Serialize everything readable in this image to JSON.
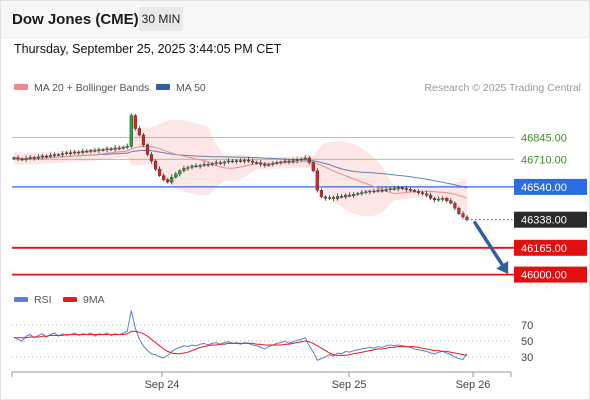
{
  "header": {
    "title": "Dow Jones (CME)",
    "timeframe": "30 MIN",
    "datetime": "Thursday, September 25, 2025 3:44:05 PM CET"
  },
  "legend": {
    "items": [
      {
        "label": "MA 20 + Bollinger Bands",
        "color": "#f08a8a"
      },
      {
        "label": "MA 50",
        "color": "#2f5f9e"
      }
    ],
    "copyright": "Research © 2025 Trading Central"
  },
  "rsi_legend": {
    "items": [
      {
        "label": "RSI",
        "color": "#5a7fd6"
      },
      {
        "label": "9MA",
        "color": "#e11d1d"
      }
    ]
  },
  "chart_data": [
    {
      "type": "candlestick",
      "title": "Dow Jones (CME)",
      "x_ticks": [
        "Sep 24",
        "Sep 25",
        "Sep 26"
      ],
      "price_levels": [
        {
          "value": "46845.00",
          "style": "green-thin"
        },
        {
          "value": "46710.00",
          "style": "green-thin"
        },
        {
          "value": "46540.00",
          "style": "blue-label"
        },
        {
          "value": "46338.00",
          "style": "current-price"
        },
        {
          "value": "46165.00",
          "style": "red-label"
        },
        {
          "value": "46000.00",
          "style": "red-label"
        }
      ],
      "ylim": [
        45930,
        47100
      ],
      "colors": {
        "up": "#2e9e3a",
        "down": "#d92222",
        "ma50": "#2f5f9e",
        "band": "#fde2e2",
        "ma20": "#f08a8a"
      },
      "close_series": [
        46720,
        46712,
        46708,
        46715,
        46722,
        46718,
        46725,
        46731,
        46728,
        46735,
        46740,
        46738,
        46745,
        46750,
        46748,
        46755,
        46752,
        46760,
        46758,
        46765,
        46762,
        46770,
        46768,
        46775,
        46772,
        46780,
        46778,
        46785,
        46790,
        46980,
        46900,
        46860,
        46800,
        46740,
        46700,
        46650,
        46610,
        46585,
        46570,
        46600,
        46620,
        46640,
        46655,
        46660,
        46670,
        46665,
        46672,
        46680,
        46676,
        46684,
        46690,
        46686,
        46694,
        46700,
        46696,
        46702,
        46698,
        46705,
        46700,
        46692,
        46688,
        46680,
        46672,
        46678,
        46684,
        46690,
        46694,
        46700,
        46695,
        46702,
        46708,
        46712,
        46718,
        46690,
        46640,
        46520,
        46480,
        46470,
        46475,
        46468,
        46482,
        46478,
        46490,
        46485,
        46495,
        46500,
        46505,
        46510,
        46515,
        46512,
        46520,
        46518,
        46525,
        46530,
        46528,
        46535,
        46530,
        46525,
        46520,
        46512,
        46505,
        46498,
        46490,
        46470,
        46460,
        46465,
        46470,
        46455,
        46440,
        46410,
        46375,
        46355,
        46338
      ],
      "forecast": {
        "from": 46338,
        "to": 46000
      }
    },
    {
      "type": "line",
      "title": "RSI",
      "x_ticks": [
        "Sep 24",
        "Sep 25",
        "Sep 26"
      ],
      "y_ticks": [
        "70",
        "50",
        "30"
      ],
      "ylim": [
        15,
        85
      ],
      "series": [
        {
          "name": "RSI",
          "values": [
            55,
            52,
            50,
            56,
            58,
            54,
            57,
            59,
            55,
            58,
            60,
            56,
            59,
            57,
            58,
            60,
            57,
            59,
            58,
            60,
            56,
            59,
            58,
            60,
            57,
            59,
            58,
            60,
            62,
            88,
            66,
            52,
            44,
            38,
            34,
            33,
            30,
            29,
            32,
            37,
            40,
            42,
            44,
            43,
            45,
            44,
            46,
            47,
            45,
            47,
            48,
            46,
            48,
            49,
            47,
            48,
            46,
            48,
            47,
            45,
            44,
            42,
            40,
            43,
            45,
            47,
            48,
            50,
            47,
            49,
            51,
            52,
            54,
            44,
            36,
            26,
            28,
            30,
            33,
            31,
            35,
            34,
            37,
            36,
            38,
            39,
            40,
            41,
            42,
            41,
            43,
            42,
            44,
            45,
            44,
            45,
            44,
            43,
            42,
            40,
            39,
            38,
            37,
            35,
            34,
            36,
            37,
            35,
            33,
            30,
            28,
            27,
            34
          ]
        },
        {
          "name": "9MA",
          "values": [
            54,
            54,
            54,
            54,
            55,
            55,
            55,
            56,
            56,
            57,
            57,
            57,
            57,
            58,
            58,
            58,
            58,
            58,
            58,
            58,
            58,
            58,
            58,
            58,
            58,
            58,
            58,
            58,
            59,
            62,
            62,
            61,
            59,
            56,
            52,
            48,
            44,
            40,
            37,
            35,
            34,
            34,
            35,
            36,
            38,
            40,
            42,
            43,
            44,
            45,
            45,
            46,
            46,
            47,
            47,
            47,
            47,
            47,
            47,
            47,
            46,
            46,
            45,
            45,
            45,
            45,
            45,
            46,
            46,
            47,
            48,
            49,
            50,
            49,
            47,
            44,
            41,
            38,
            35,
            33,
            32,
            32,
            32,
            33,
            34,
            35,
            36,
            37,
            38,
            39,
            40,
            40,
            41,
            42,
            42,
            43,
            43,
            43,
            43,
            43,
            42,
            41,
            40,
            39,
            38,
            38,
            37,
            37,
            36,
            35,
            34,
            33,
            32
          ]
        }
      ]
    }
  ]
}
